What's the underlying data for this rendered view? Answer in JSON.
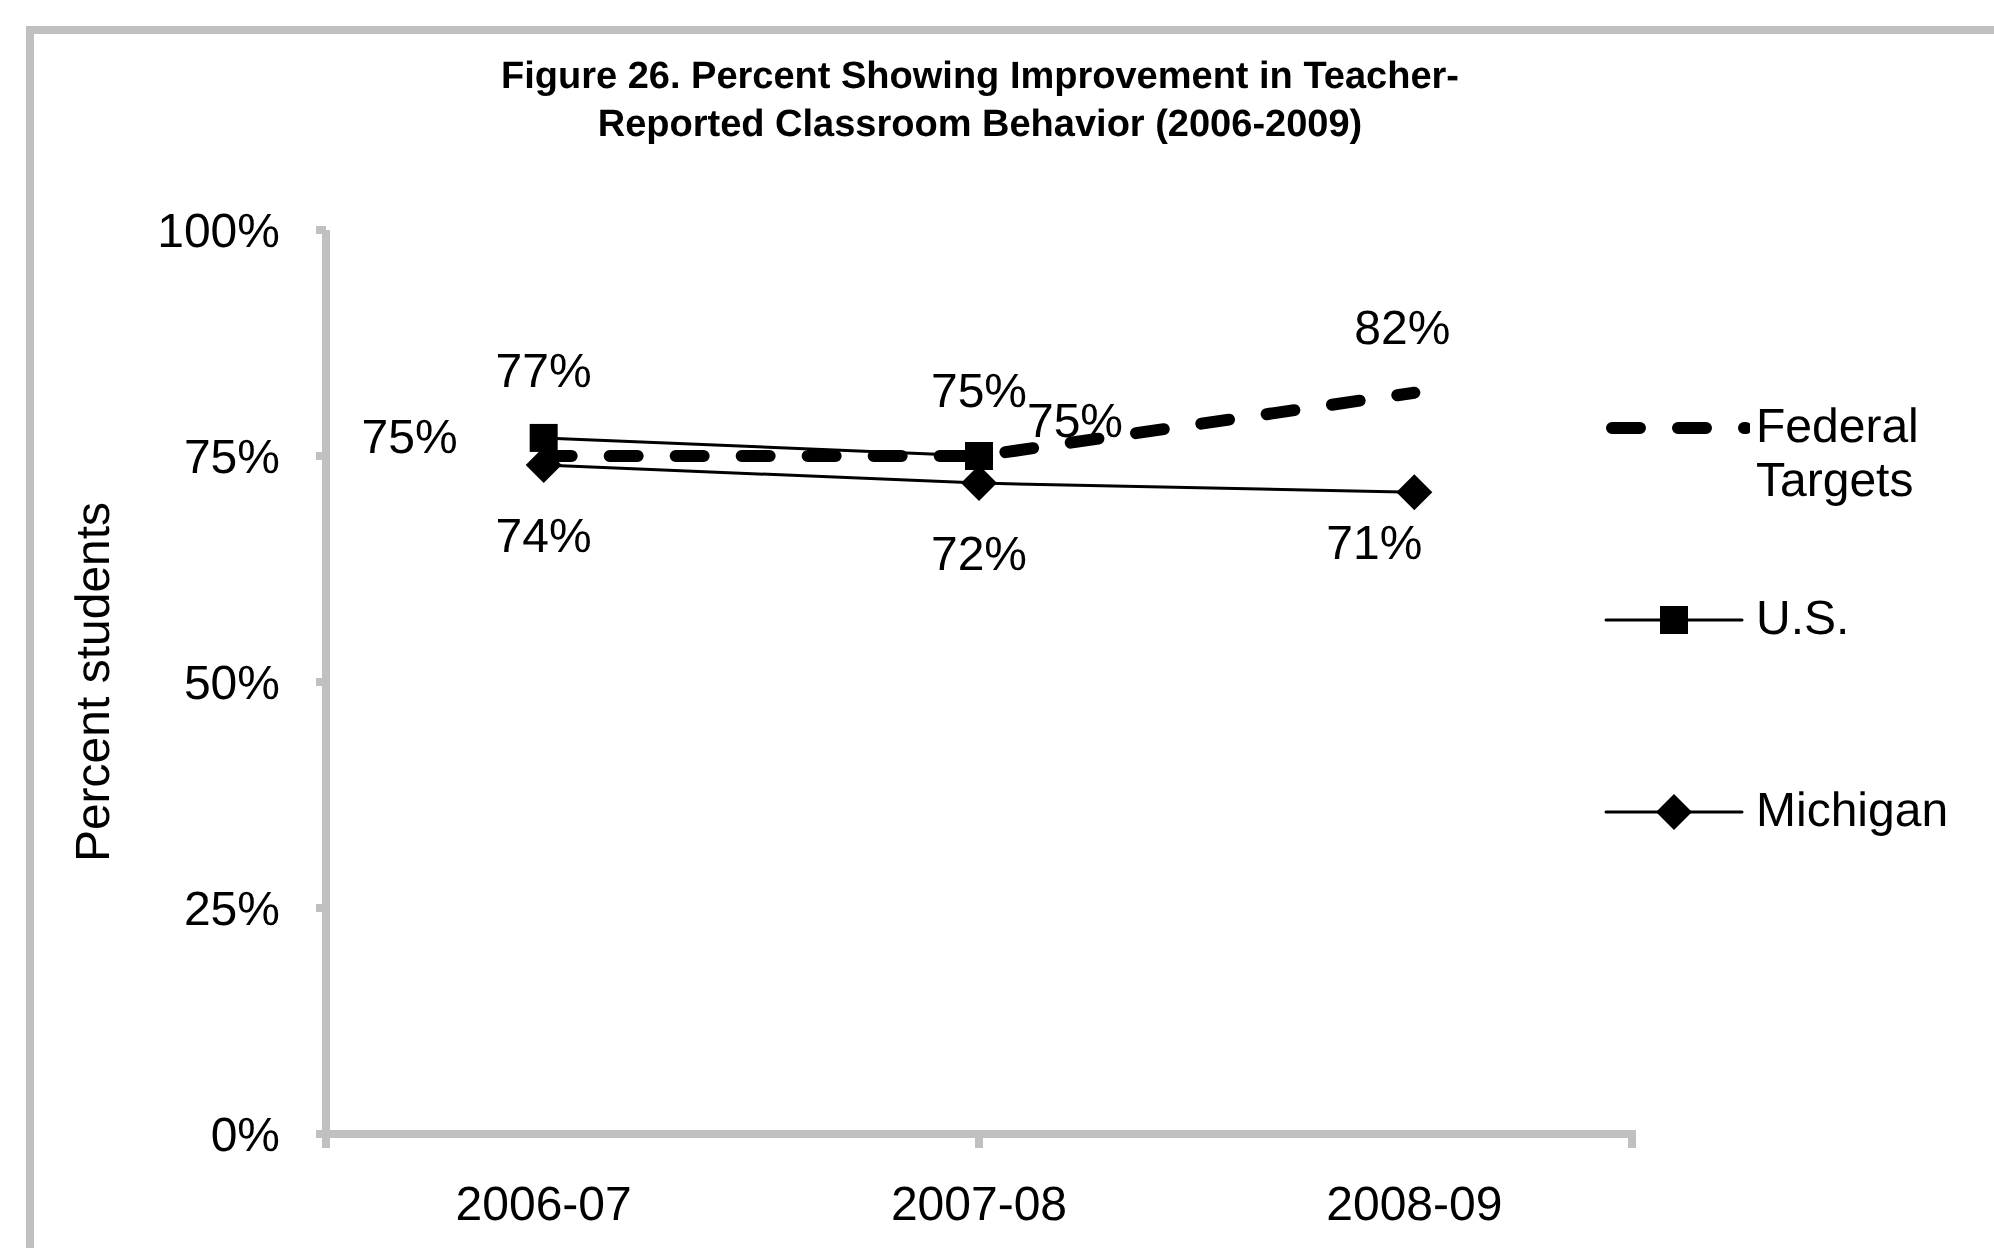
{
  "chart_data": {
    "type": "line",
    "title": "Figure 26. Percent Showing Improvement in Teacher-Reported Classroom Behavior (2006-2009)",
    "ylabel": "Percent students",
    "categories": [
      "2006-07",
      "2007-08",
      "2008-09"
    ],
    "series": [
      {
        "name": "Federal Targets",
        "color": "#000000",
        "values": [
          75,
          75,
          82
        ],
        "value_labels": [
          "75%",
          "75%",
          "82%"
        ],
        "line_style": "dashed",
        "marker": "none"
      },
      {
        "name": "U.S.",
        "color": "#000000",
        "values": [
          77,
          75,
          null
        ],
        "value_labels": [
          "77%",
          "75%",
          null
        ],
        "line_style": "solid",
        "marker": "square"
      },
      {
        "name": "Michigan",
        "color": "#000000",
        "values": [
          74,
          72,
          71
        ],
        "value_labels": [
          "74%",
          "72%",
          "71%"
        ],
        "line_style": "solid",
        "marker": "diamond"
      }
    ],
    "ylim": [
      0,
      100
    ],
    "yticks": [
      {
        "value": 0,
        "label": "0%"
      },
      {
        "value": 25,
        "label": "25%"
      },
      {
        "value": 50,
        "label": "50%"
      },
      {
        "value": 75,
        "label": "75%"
      },
      {
        "value": 100,
        "label": "100%"
      }
    ],
    "legend": "right"
  }
}
